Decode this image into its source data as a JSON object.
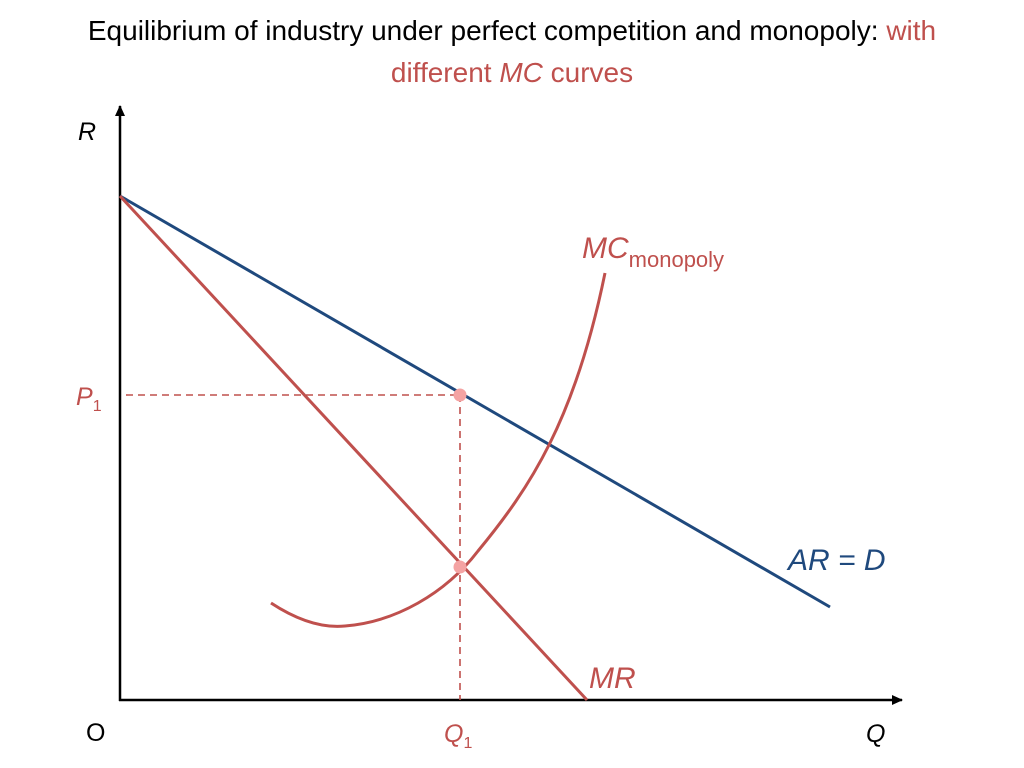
{
  "title": {
    "line1_black": "Equilibrium of  industry under perfect competition and monopoly: ",
    "line1_red": "with",
    "line2_pre": "different ",
    "line2_italic": "MC",
    "line2_post": " curves"
  },
  "axes": {
    "y_label": "R",
    "x_label": "Q",
    "origin_label": "O"
  },
  "labels": {
    "p1_main": "P",
    "p1_sub": "1",
    "q1_main": "Q",
    "q1_sub": "1",
    "mc_main": "MC",
    "mc_sub": "monopoly",
    "ar_d": "AR = D",
    "mr": "MR"
  },
  "colors": {
    "red": "#bf504d",
    "blue": "#1f497d",
    "black": "#000000",
    "point": "#f4a3a3"
  }
}
